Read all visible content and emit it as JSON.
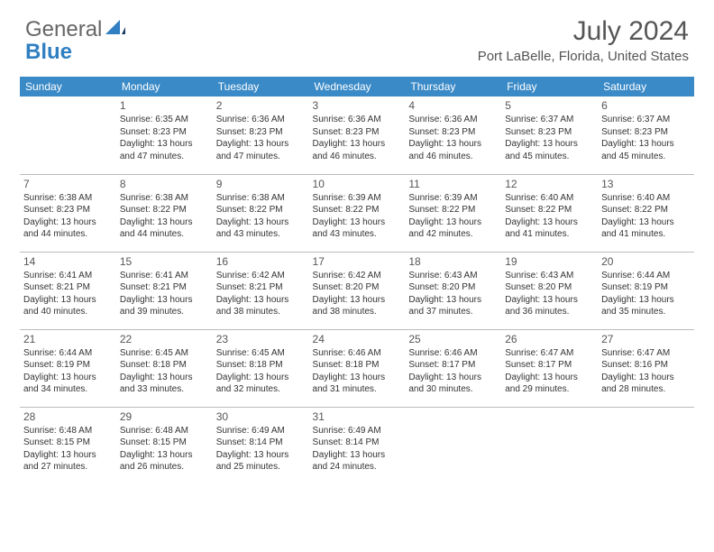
{
  "logo": {
    "word1": "General",
    "word2": "Blue"
  },
  "title": "July 2024",
  "location": "Port LaBelle, Florida, United States",
  "colors": {
    "header_bg": "#3a8ac7",
    "header_text": "#ffffff",
    "grid_line": "#bcbcbc",
    "text": "#333333",
    "title_text": "#555555",
    "logo_gray": "#666666",
    "logo_blue": "#2f7fc2"
  },
  "dayHeaders": [
    "Sunday",
    "Monday",
    "Tuesday",
    "Wednesday",
    "Thursday",
    "Friday",
    "Saturday"
  ],
  "weeks": [
    [
      {
        "day": "",
        "lines": [
          "",
          "",
          "",
          ""
        ]
      },
      {
        "day": "1",
        "lines": [
          "Sunrise: 6:35 AM",
          "Sunset: 8:23 PM",
          "Daylight: 13 hours",
          "and 47 minutes."
        ]
      },
      {
        "day": "2",
        "lines": [
          "Sunrise: 6:36 AM",
          "Sunset: 8:23 PM",
          "Daylight: 13 hours",
          "and 47 minutes."
        ]
      },
      {
        "day": "3",
        "lines": [
          "Sunrise: 6:36 AM",
          "Sunset: 8:23 PM",
          "Daylight: 13 hours",
          "and 46 minutes."
        ]
      },
      {
        "day": "4",
        "lines": [
          "Sunrise: 6:36 AM",
          "Sunset: 8:23 PM",
          "Daylight: 13 hours",
          "and 46 minutes."
        ]
      },
      {
        "day": "5",
        "lines": [
          "Sunrise: 6:37 AM",
          "Sunset: 8:23 PM",
          "Daylight: 13 hours",
          "and 45 minutes."
        ]
      },
      {
        "day": "6",
        "lines": [
          "Sunrise: 6:37 AM",
          "Sunset: 8:23 PM",
          "Daylight: 13 hours",
          "and 45 minutes."
        ]
      }
    ],
    [
      {
        "day": "7",
        "lines": [
          "Sunrise: 6:38 AM",
          "Sunset: 8:23 PM",
          "Daylight: 13 hours",
          "and 44 minutes."
        ]
      },
      {
        "day": "8",
        "lines": [
          "Sunrise: 6:38 AM",
          "Sunset: 8:22 PM",
          "Daylight: 13 hours",
          "and 44 minutes."
        ]
      },
      {
        "day": "9",
        "lines": [
          "Sunrise: 6:38 AM",
          "Sunset: 8:22 PM",
          "Daylight: 13 hours",
          "and 43 minutes."
        ]
      },
      {
        "day": "10",
        "lines": [
          "Sunrise: 6:39 AM",
          "Sunset: 8:22 PM",
          "Daylight: 13 hours",
          "and 43 minutes."
        ]
      },
      {
        "day": "11",
        "lines": [
          "Sunrise: 6:39 AM",
          "Sunset: 8:22 PM",
          "Daylight: 13 hours",
          "and 42 minutes."
        ]
      },
      {
        "day": "12",
        "lines": [
          "Sunrise: 6:40 AM",
          "Sunset: 8:22 PM",
          "Daylight: 13 hours",
          "and 41 minutes."
        ]
      },
      {
        "day": "13",
        "lines": [
          "Sunrise: 6:40 AM",
          "Sunset: 8:22 PM",
          "Daylight: 13 hours",
          "and 41 minutes."
        ]
      }
    ],
    [
      {
        "day": "14",
        "lines": [
          "Sunrise: 6:41 AM",
          "Sunset: 8:21 PM",
          "Daylight: 13 hours",
          "and 40 minutes."
        ]
      },
      {
        "day": "15",
        "lines": [
          "Sunrise: 6:41 AM",
          "Sunset: 8:21 PM",
          "Daylight: 13 hours",
          "and 39 minutes."
        ]
      },
      {
        "day": "16",
        "lines": [
          "Sunrise: 6:42 AM",
          "Sunset: 8:21 PM",
          "Daylight: 13 hours",
          "and 38 minutes."
        ]
      },
      {
        "day": "17",
        "lines": [
          "Sunrise: 6:42 AM",
          "Sunset: 8:20 PM",
          "Daylight: 13 hours",
          "and 38 minutes."
        ]
      },
      {
        "day": "18",
        "lines": [
          "Sunrise: 6:43 AM",
          "Sunset: 8:20 PM",
          "Daylight: 13 hours",
          "and 37 minutes."
        ]
      },
      {
        "day": "19",
        "lines": [
          "Sunrise: 6:43 AM",
          "Sunset: 8:20 PM",
          "Daylight: 13 hours",
          "and 36 minutes."
        ]
      },
      {
        "day": "20",
        "lines": [
          "Sunrise: 6:44 AM",
          "Sunset: 8:19 PM",
          "Daylight: 13 hours",
          "and 35 minutes."
        ]
      }
    ],
    [
      {
        "day": "21",
        "lines": [
          "Sunrise: 6:44 AM",
          "Sunset: 8:19 PM",
          "Daylight: 13 hours",
          "and 34 minutes."
        ]
      },
      {
        "day": "22",
        "lines": [
          "Sunrise: 6:45 AM",
          "Sunset: 8:18 PM",
          "Daylight: 13 hours",
          "and 33 minutes."
        ]
      },
      {
        "day": "23",
        "lines": [
          "Sunrise: 6:45 AM",
          "Sunset: 8:18 PM",
          "Daylight: 13 hours",
          "and 32 minutes."
        ]
      },
      {
        "day": "24",
        "lines": [
          "Sunrise: 6:46 AM",
          "Sunset: 8:18 PM",
          "Daylight: 13 hours",
          "and 31 minutes."
        ]
      },
      {
        "day": "25",
        "lines": [
          "Sunrise: 6:46 AM",
          "Sunset: 8:17 PM",
          "Daylight: 13 hours",
          "and 30 minutes."
        ]
      },
      {
        "day": "26",
        "lines": [
          "Sunrise: 6:47 AM",
          "Sunset: 8:17 PM",
          "Daylight: 13 hours",
          "and 29 minutes."
        ]
      },
      {
        "day": "27",
        "lines": [
          "Sunrise: 6:47 AM",
          "Sunset: 8:16 PM",
          "Daylight: 13 hours",
          "and 28 minutes."
        ]
      }
    ],
    [
      {
        "day": "28",
        "lines": [
          "Sunrise: 6:48 AM",
          "Sunset: 8:15 PM",
          "Daylight: 13 hours",
          "and 27 minutes."
        ]
      },
      {
        "day": "29",
        "lines": [
          "Sunrise: 6:48 AM",
          "Sunset: 8:15 PM",
          "Daylight: 13 hours",
          "and 26 minutes."
        ]
      },
      {
        "day": "30",
        "lines": [
          "Sunrise: 6:49 AM",
          "Sunset: 8:14 PM",
          "Daylight: 13 hours",
          "and 25 minutes."
        ]
      },
      {
        "day": "31",
        "lines": [
          "Sunrise: 6:49 AM",
          "Sunset: 8:14 PM",
          "Daylight: 13 hours",
          "and 24 minutes."
        ]
      },
      {
        "day": "",
        "lines": [
          "",
          "",
          "",
          ""
        ]
      },
      {
        "day": "",
        "lines": [
          "",
          "",
          "",
          ""
        ]
      },
      {
        "day": "",
        "lines": [
          "",
          "",
          "",
          ""
        ]
      }
    ]
  ]
}
